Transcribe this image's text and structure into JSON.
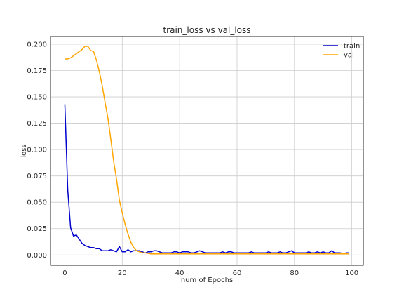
{
  "chart_data": {
    "type": "line",
    "title": "train_loss vs val_loss",
    "xlabel": "num of Epochs",
    "ylabel": "loss",
    "xlim": [
      -5,
      104
    ],
    "ylim": [
      -0.0098,
      0.2073
    ],
    "xticks": [
      0,
      20,
      40,
      60,
      80,
      100
    ],
    "yticks": [
      0.0,
      0.025,
      0.05,
      0.075,
      0.1,
      0.125,
      0.15,
      0.175,
      0.2
    ],
    "xtick_labels": [
      "0",
      "20",
      "40",
      "60",
      "80",
      "100"
    ],
    "ytick_labels": [
      "0.000",
      "0.025",
      "0.050",
      "0.075",
      "0.100",
      "0.125",
      "0.150",
      "0.175",
      "0.200"
    ],
    "grid": true,
    "legend_position": "top-right",
    "series": [
      {
        "name": "train",
        "color": "#0000cc",
        "values": [
          0.143,
          0.062,
          0.026,
          0.018,
          0.019,
          0.015,
          0.011,
          0.009,
          0.008,
          0.007,
          0.007,
          0.006,
          0.006,
          0.004,
          0.004,
          0.004,
          0.005,
          0.004,
          0.003,
          0.008,
          0.003,
          0.003,
          0.005,
          0.003,
          0.004,
          0.004,
          0.004,
          0.003,
          0.002,
          0.003,
          0.003,
          0.004,
          0.004,
          0.003,
          0.002,
          0.002,
          0.002,
          0.002,
          0.003,
          0.003,
          0.002,
          0.003,
          0.003,
          0.003,
          0.002,
          0.002,
          0.003,
          0.004,
          0.003,
          0.002,
          0.002,
          0.002,
          0.002,
          0.002,
          0.002,
          0.003,
          0.002,
          0.003,
          0.003,
          0.002,
          0.002,
          0.002,
          0.002,
          0.002,
          0.002,
          0.003,
          0.002,
          0.002,
          0.002,
          0.002,
          0.002,
          0.003,
          0.002,
          0.002,
          0.002,
          0.003,
          0.002,
          0.002,
          0.003,
          0.004,
          0.002,
          0.002,
          0.002,
          0.002,
          0.002,
          0.003,
          0.002,
          0.002,
          0.003,
          0.002,
          0.003,
          0.002,
          0.002,
          0.004,
          0.002,
          0.002,
          0.002,
          0.001,
          0.002,
          0.002
        ]
      },
      {
        "name": "val",
        "color": "#ffa500",
        "values": [
          0.186,
          0.186,
          0.187,
          0.189,
          0.191,
          0.193,
          0.195,
          0.198,
          0.198,
          0.194,
          0.193,
          0.185,
          0.174,
          0.161,
          0.145,
          0.13,
          0.11,
          0.089,
          0.072,
          0.052,
          0.04,
          0.029,
          0.02,
          0.012,
          0.007,
          0.004,
          0.003,
          0.002,
          0.002,
          0.0015,
          0.001,
          0.001,
          0.001,
          0.001,
          0.001,
          0.001,
          0.001,
          0.001,
          0.001,
          0.001,
          0.001,
          0.001,
          0.001,
          0.001,
          0.001,
          0.001,
          0.001,
          0.001,
          0.001,
          0.001,
          0.001,
          0.001,
          0.001,
          0.001,
          0.001,
          0.001,
          0.001,
          0.001,
          0.001,
          0.001,
          0.001,
          0.001,
          0.001,
          0.001,
          0.001,
          0.001,
          0.001,
          0.001,
          0.001,
          0.001,
          0.001,
          0.001,
          0.001,
          0.001,
          0.001,
          0.001,
          0.001,
          0.001,
          0.001,
          0.001,
          0.001,
          0.001,
          0.001,
          0.001,
          0.001,
          0.001,
          0.001,
          0.001,
          0.001,
          0.001,
          0.001,
          0.001,
          0.001,
          0.001,
          0.001,
          0.001,
          0.001,
          0.001,
          0.001,
          0.001
        ]
      }
    ]
  }
}
